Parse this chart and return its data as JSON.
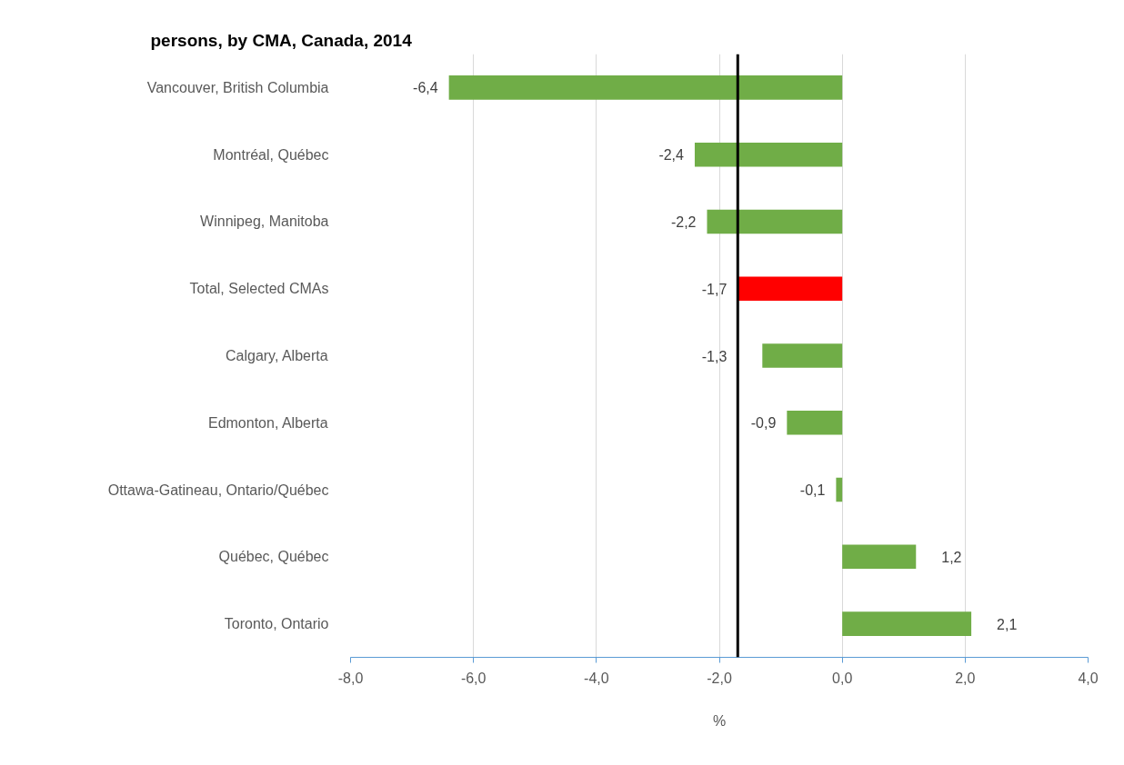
{
  "chart_data": {
    "type": "bar",
    "orientation": "horizontal",
    "title": "persons, by CMA, Canada, 2014",
    "xlabel": "%",
    "categories": [
      "Vancouver, British Columbia",
      "Montréal, Québec",
      "Winnipeg, Manitoba",
      "Total, Selected CMAs",
      "Calgary, Alberta",
      "Edmonton, Alberta",
      "Ottawa-Gatineau, Ontario/Québec",
      "Québec, Québec",
      "Toronto, Ontario"
    ],
    "values": [
      -6.4,
      -2.4,
      -2.2,
      -1.7,
      -1.3,
      -0.9,
      -0.1,
      1.2,
      2.1
    ],
    "colors": [
      "#70ad47",
      "#70ad47",
      "#70ad47",
      "#ff0000",
      "#70ad47",
      "#70ad47",
      "#70ad47",
      "#70ad47",
      "#70ad47"
    ],
    "value_labels": [
      "-6,4",
      "-2,4",
      "-2,2",
      "-1,7",
      "-1,3",
      "-0,9",
      "-0,1",
      "1,2",
      "2,1"
    ],
    "xlim": [
      -8,
      4
    ],
    "xticks": [
      {
        "value": -8,
        "label": "-8,0"
      },
      {
        "value": -6,
        "label": "-6,0"
      },
      {
        "value": -4,
        "label": "-4,0"
      },
      {
        "value": -2,
        "label": "-2,0"
      },
      {
        "value": 0,
        "label": "0,0"
      },
      {
        "value": 2,
        "label": "2,0"
      },
      {
        "value": 4,
        "label": "4,0"
      }
    ],
    "grid": "x",
    "ref_lines": [
      {
        "axis": "x",
        "value": -1.7,
        "color": "#000000"
      }
    ]
  }
}
